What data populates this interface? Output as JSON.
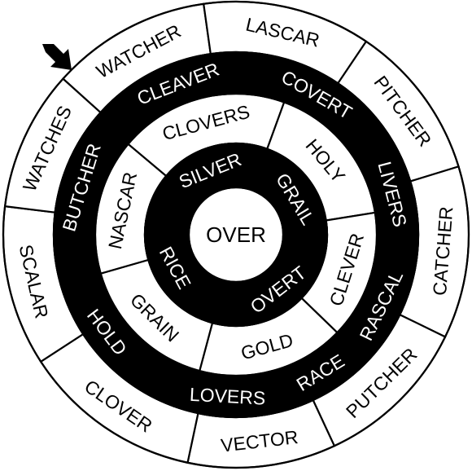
{
  "puzzle": {
    "start_marker": "arrow-icon",
    "center_word": "OVER",
    "colors": {
      "ink": "#000000",
      "paper": "#ffffff"
    },
    "rings": [
      {
        "name": "outer",
        "filled": false,
        "words": [
          "WATCHER",
          "LASCAR",
          "PITCHER",
          "CATCHER",
          "PUTCHER",
          "VECTOR",
          "CLOVER",
          "SCALAR",
          "WATCHES"
        ]
      },
      {
        "name": "second",
        "filled": true,
        "words": [
          "CLEAVER",
          "COVERT",
          "LIVERS",
          "RASCAL",
          "RACE",
          "LOVERS",
          "HOLD",
          "BUTCHER"
        ]
      },
      {
        "name": "third",
        "filled": false,
        "words": [
          "CLOVERS",
          "HOLY",
          "CLEVER",
          "GOLD",
          "GRAIN",
          "NASCAR"
        ]
      },
      {
        "name": "inner",
        "filled": true,
        "words": [
          "SILVER",
          "GRAIL",
          "OVERT",
          "RICE"
        ]
      }
    ]
  }
}
